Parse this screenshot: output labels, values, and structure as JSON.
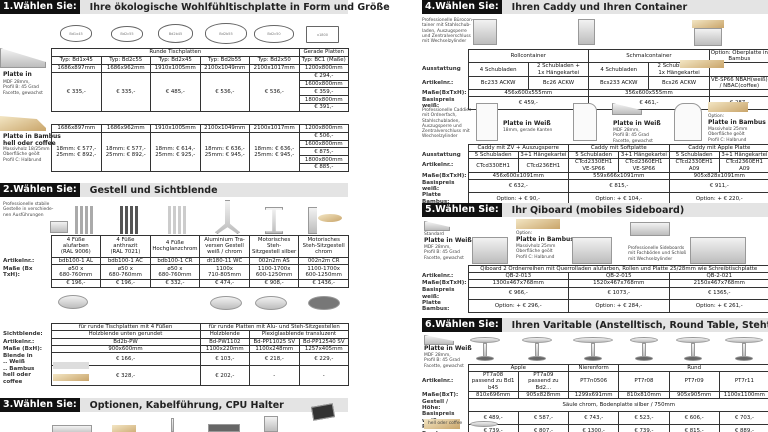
{
  "s1": {
    "num": "1.Wählen Sie:",
    "title": "Ihre ökologische Wohlfühltischplatte in Form und Größe",
    "shapes": [
      "Bd1x45",
      "Bd2c55",
      "Bd2b45",
      "Bd2b55",
      "Bd2c50",
      "x1800"
    ],
    "white_label": "Platte in",
    "white_desc": "MDF 28mm,\nProfil B: 45 Grad\nFacette, gewachst",
    "bamboo_label": "Platte in Bambus\nhell oder coffee",
    "bamboo_desc": "Massivholz 18/25mm\nOberfläche geölt\nProfil C: Halbrund",
    "table_white": {
      "rows": [
        [
          {
            "t": "Runde Tischplatten",
            "c": 5
          },
          "Gerade Platten"
        ],
        [
          "Typ: Bd1x45",
          "Typ: Bd2c55",
          "Typ: Bd2x45",
          "Typ: Bd2b55",
          "Typ: Bd2x50",
          "Typ: BC1 (Maße)"
        ],
        [
          "1686x897mm",
          "1686x962mm",
          "1910x1005mm",
          "2100x1049mm",
          "2100x1017mm",
          "1200x800mm"
        ],
        [
          {
            "t": "€ 335,-",
            "r": 5
          },
          {
            "t": "€ 335,-",
            "r": 5
          },
          {
            "t": "€ 485,-",
            "r": 5
          },
          {
            "t": "€ 536,-",
            "r": 5
          },
          {
            "t": "€ 536,-",
            "r": 5
          },
          "€ 294,-"
        ],
        [
          "1600x800mm"
        ],
        [
          "€ 359,-"
        ],
        [
          "1800x800mm"
        ],
        [
          "€ 391,-"
        ]
      ]
    },
    "table_bamboo": {
      "rows": [
        [
          "1686x897mm",
          "1686x962mm",
          "1910x1005mm",
          "2100x1049mm",
          "2100x1017mm",
          "1200x800mm"
        ],
        [
          {
            "t": "18mm: € 577,-\n25mm: € 892,-",
            "r": 5
          },
          {
            "t": "18mm: € 577,-\n25mm: € 892,-",
            "r": 5
          },
          {
            "t": "18mm: € 614,-\n25mm: € 925,-",
            "r": 5
          },
          {
            "t": "18mm: € 636,-\n25mm: € 945,-",
            "r": 5
          },
          {
            "t": "18mm: € 636,-\n25mm: € 945,-",
            "r": 5
          },
          "€ 506,-"
        ],
        [
          "1600x800mm"
        ],
        [
          "€ 875,-"
        ],
        [
          "1800x800mm"
        ],
        [
          "€ 885,-"
        ]
      ]
    }
  },
  "s2": {
    "num": "2.Wählen Sie:",
    "title": "Gestell und Sichtblende",
    "intro": "Professionelle stabile\nGestelle in verschiede-\nnen Ausführungen",
    "table_frames": {
      "labels": [
        "",
        "Artikelnr.:",
        "Maße (Bx\nTxH):",
        ""
      ],
      "rows": [
        [
          "4 Füße\nalufarben\n(RAL 9006)",
          "4 Füße\nanthrazit\n(RAL 7021)",
          "4 Füße\nHochglanzchrom",
          "Aluminium Tra-\nversen Gestell\nweiß / chrom",
          "Motorisches Steh-\nSitzgestell silber",
          "Motorisches\nSteh-Sitzgestell\nchrom"
        ],
        [
          "bdb100-1 AL",
          "bdb100-1 AC",
          "bdb100-1 CR",
          "dt180-11 WC",
          "002n2m AS",
          "002n2m CR"
        ],
        [
          "ø50 x\n680-760mm",
          "ø50 x\n680-760mm",
          "ø50 x\n680-760mm",
          "1100x\n710-805mm",
          "1100-1700x\n600-1250mm",
          "1100-1700x\n600-1250mm"
        ],
        [
          "€ 196,-",
          "€ 196,-",
          "€ 332,-",
          "€ 474,-",
          "€ 908,-",
          "€ 1436,-"
        ]
      ]
    },
    "table_screens": {
      "labels": [
        "",
        "Sichtblende:",
        "Artikelnr.:",
        "Maße (BxH):",
        "Blende in\n.. Weiß",
        ".. Bambus\nhell oder coffee"
      ],
      "rows": [
        [
          "für runde Tischplatten mit 4 Füßen",
          {
            "t": "für runde Platten mit Alu- und Steh-Sitzgestellen",
            "c": 3
          }
        ],
        [
          "Holzblende unten gerundet",
          "Holzblende",
          {
            "t": "Plexiglasblende transluzent",
            "c": 2
          }
        ],
        [
          "Bd2b-PW",
          "Bd-PW1102",
          "Bd-PP11025 SV",
          "Bd-PP12540 SV"
        ],
        [
          "900x600mm",
          "1100x220mm",
          "1100x248mm",
          "1257x405mm"
        ],
        [
          "€ 166,-",
          "€ 103,-",
          "€ 218,-",
          "€ 229,-"
        ],
        [
          "€ 328,-",
          "€ 202,-",
          "-",
          "-"
        ]
      ]
    }
  },
  "s3": {
    "num": "3.Wählen Sie:",
    "title": "Optionen, Kabelführung, CPU Halter"
  },
  "s4": {
    "num": "4.Wählen Sie:",
    "title": "Ihren Caddy und Ihren Container",
    "intro": "Professionelle Bürocon-\ntainer mit Stahlschub-\nladen, Auszugsperre\nund Zentralverschluss\nmit Wechselzylinder",
    "intro2": "Professionelle Caddies\nmit Ordnerfach,\nStahlschubladen,\nAuszugsperre und\nZentralverschluss mit\nWechselzylinder",
    "cap1_title": "Platte in Weiß",
    "cap1_desc": "18mm, gerade Kanten",
    "cap2_title": "Platte in Weiß",
    "cap2_desc": "MDF 28mm,\nProfil B: 45 Grad\nFacette, gewachst",
    "cap3_option": "Option:",
    "cap3_title": "Platte in Bambus",
    "cap3_desc": "Massivholz 25mm\nOberfläche geölt\nProfil C: Halbrund",
    "swatch_label": "hell oder coffee",
    "table_container": {
      "labels": [
        "",
        "Ausstattung",
        "Artikelnr.:",
        "Maße(BxTxH):",
        "Basispreis weiß:"
      ],
      "rows": [
        [
          {
            "t": "Rollcontainer",
            "c": 2
          },
          {
            "t": "Schmalcontainer",
            "c": 2
          },
          "Option: Oberplatte in Bambus"
        ],
        [
          "4 Schubladen",
          "2 Schubladen +\n1x Hängekartei",
          "4 Schubladen",
          "2 Schubladen +\n1x Hängekartei",
          ""
        ],
        [
          "Bc233 ACKW",
          "Bc26 ACKW",
          "Bcs233 ACKW",
          "Bcs26 ACKW",
          "VE-SP66 NBAH(weiß) / NBAC(coffee)"
        ],
        [
          {
            "t": "456x600x555mm",
            "c": 2
          },
          {
            "t": "356x600x555mm",
            "c": 2
          },
          ""
        ],
        [
          {
            "t": "€ 459,-",
            "c": 2
          },
          {
            "t": "€ 461,-",
            "c": 2
          },
          "€ 287,-"
        ]
      ]
    },
    "table_caddy": {
      "labels": [
        "",
        "Ausstattung",
        "Artikelnr.:",
        "Maße(BxTxH):",
        "Basispreis weiß:",
        "Platte Bambus:"
      ],
      "rows": [
        [
          {
            "t": "Caddy mit ZV + Auszugsperre",
            "c": 2
          },
          {
            "t": "Caddy mit Softplatte",
            "c": 2
          },
          {
            "t": "Caddy mit Apple Platte",
            "c": 2
          }
        ],
        [
          "5 Schubladen",
          "3+1 Hängekartei",
          "5 Schubladen",
          "3+1 Hängekartei",
          "5 Schubladen",
          "3+1 Hängekartei"
        ],
        [
          "CTcd330EH1",
          "CTcd236EH1",
          "CTcd2330EH1 VE-SP66",
          "CTcd2360EH1 VE-SP66",
          "CTcd2330EH1 A09",
          "CTcd2360EH1 A09"
        ],
        [
          {
            "t": "456x600x1091mm",
            "c": 2
          },
          {
            "t": "559x666x1091mm",
            "c": 2
          },
          {
            "t": "905x828x1091mm",
            "c": 2
          }
        ],
        [
          {
            "t": "€ 632,-",
            "c": 2
          },
          {
            "t": "€ 815,-",
            "c": 2
          },
          {
            "t": "€ 911,-",
            "c": 2
          }
        ],
        [
          {
            "t": "Option: + € 90,-",
            "c": 2
          },
          {
            "t": "Option: + € 104,-",
            "c": 2
          },
          {
            "t": "Option: + € 220,-",
            "c": 2
          }
        ]
      ]
    }
  },
  "s5": {
    "num": "5.Wählen Sie:",
    "title": "Ihr Qiboard (mobiles Sideboard)",
    "std": "Standard",
    "white_title": "Platte in Weiß",
    "white_desc": "MDF 28mm,\nProfil B: 45 Grad\nFacette, gewachst",
    "opt": "Option:",
    "bamboo_title": "Platte in Bambus",
    "bamboo_desc": "Massivholz 25mm\nOberfläche geölt\nProfil C: Halbrund",
    "sideboard_desc": "Professionelle Sideboards\nmit Fachböden und Schloß\nmit Wechselzylinder",
    "table": {
      "labels": [
        "",
        "Artikelnr.:",
        "Maße(BxTxH):",
        "Basispreis weiß:",
        "Platte Bambus:"
      ],
      "rows": [
        [
          {
            "t": "Qiboard 2 Ordnerreihen mit Querrolladen alufarben, Rollen und Platte 25/28mm wie Schreibtischplatte",
            "c": 3
          }
        ],
        [
          "QB-2-013",
          "QB-2-015",
          "QB-2-021"
        ],
        [
          "1300x467x768mm",
          "1520x467x768mm",
          "2150x467x768mm"
        ],
        [
          "€ 966,-",
          "€ 1073,-",
          "€ 1365,-"
        ],
        [
          "Option: + € 296,-",
          "Option: + € 284,-",
          "Option: + € 261,-"
        ]
      ]
    }
  },
  "s6": {
    "num": "6.Wählen Sie:",
    "title": "Ihren Varitable (Anstelltisch, Round Table, Stehtisch)",
    "white_title": "Platte in Weiß",
    "white_desc": "MDF 28mm,\nProfil B: 45 Grad\nFacette, gewachst",
    "swatch_label": "hell oder coffee",
    "table": {
      "labels": [
        "",
        "Artikelnr.:",
        "Maße(BxT):",
        "Gestell / Höhe:",
        "Basispreis weiß:",
        "Platte Bambus:"
      ],
      "rows": [
        [
          {
            "t": "Apple",
            "c": 2
          },
          "Nierenform",
          {
            "t": "Rund",
            "c": 3
          }
        ],
        [
          "PT7a08\npassend zu Bd1 b45",
          "PT7a09\npassend zu Bd2...",
          "PT7n0506",
          "PT7r08",
          "PT7r09",
          "PT7r11"
        ],
        [
          "810x696mm",
          "905x828mm",
          "1299x691mm",
          "810x810mm",
          "905x905mm",
          "1100x1100mm"
        ],
        [
          {
            "t": "Säule chrom, Bodenplatte silber / 750mm",
            "c": 6
          }
        ],
        [
          "€ 489,-",
          "€ 587,-",
          "€ 743,-",
          "€ 523,-",
          "€ 606,-",
          "€ 703,-"
        ],
        [
          "€ 739,-",
          "€ 807,-",
          "€ 1300,-",
          "€ 739,-",
          "€ 815,-",
          "€ 889,-"
        ]
      ]
    }
  }
}
